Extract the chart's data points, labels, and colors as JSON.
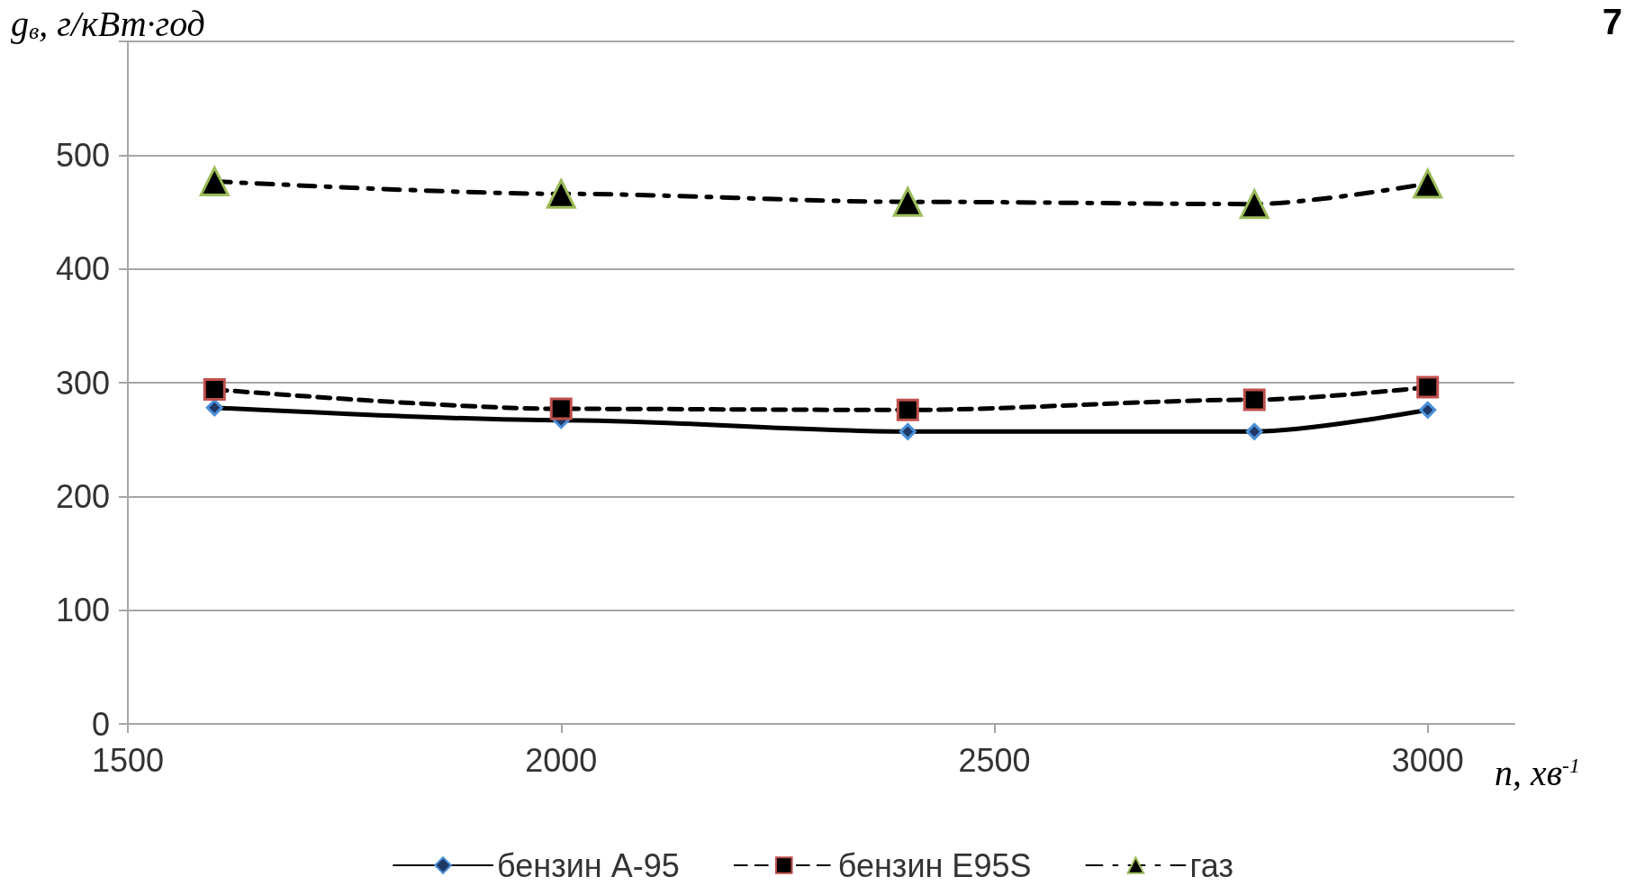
{
  "chart_data": {
    "type": "line",
    "ylabel": "g$_{в}$, г/кВт·год",
    "xlabel": "n, хв$^{-1}$",
    "xlim": [
      1500,
      3100
    ],
    "xticks": [
      1500,
      2000,
      2500,
      3000
    ],
    "ylim": [
      0,
      600
    ],
    "yticks": [
      0,
      100,
      200,
      300,
      400,
      500,
      {
        "value": 600,
        "label": null
      }
    ],
    "grid": "y",
    "legend": "bottom",
    "annotations": [
      "7"
    ],
    "series": [
      {
        "name": "бензин А-95",
        "color": "#000000",
        "marker": "diamond",
        "line_style": "solid",
        "x": [
          1600,
          2000,
          2400,
          2800,
          3000
        ],
        "values": [
          278,
          267,
          257,
          257,
          276
        ]
      },
      {
        "name": "бензин E95S",
        "color": "#000000",
        "marker": "square",
        "line_style": "dashed",
        "x": [
          1600,
          2000,
          2400,
          2800,
          3000
        ],
        "values": [
          294,
          277,
          276,
          285,
          296
        ]
      },
      {
        "name": "газ",
        "color": "#000000",
        "marker": "triangle",
        "line_style": "dashdot",
        "x": [
          1600,
          2000,
          2400,
          2800,
          3000
        ],
        "values": [
          477,
          466,
          459,
          457,
          475
        ]
      }
    ]
  }
}
